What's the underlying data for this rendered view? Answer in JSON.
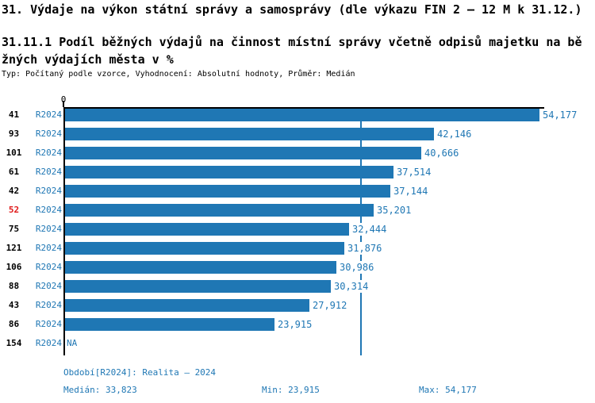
{
  "header": {
    "title": "31. Výdaje na výkon státní správy a samosprávy (dle výkazu FIN 2 – 12 M k 31.12.)",
    "subtitle_line1": "31.11.1 Podíl běžných výdajů na činnost místní správy včetně odpisů majetku na bě",
    "subtitle_line2": "žných výdajích města v %",
    "meta": "Typ: Počítaný podle vzorce, Vyhodnocení: Absolutní hodnoty, Průměr: Medián"
  },
  "chart_data": {
    "type": "bar",
    "orientation": "horizontal",
    "title": "31.11.1 Podíl běžných výdajů na činnost místní správy včetně odpisů majetku na běžných výdajích města v %",
    "series_name": "R2024",
    "x_axis": {
      "origin_label": "0"
    },
    "xlim": [
      0,
      54630
    ],
    "categories": [
      "41",
      "93",
      "101",
      "61",
      "42",
      "52",
      "75",
      "121",
      "106",
      "88",
      "43",
      "86",
      "154"
    ],
    "values": [
      54177,
      42146,
      40666,
      37514,
      37144,
      35201,
      32444,
      31876,
      30986,
      30314,
      27912,
      23915,
      null
    ],
    "highlight_category": "52",
    "median": 33823,
    "min": 23915,
    "max": 54177,
    "rows": [
      {
        "id": "41",
        "period": "R2024",
        "value": 54177,
        "label": "54,177"
      },
      {
        "id": "93",
        "period": "R2024",
        "value": 42146,
        "label": "42,146"
      },
      {
        "id": "101",
        "period": "R2024",
        "value": 40666,
        "label": "40,666"
      },
      {
        "id": "61",
        "period": "R2024",
        "value": 37514,
        "label": "37,514"
      },
      {
        "id": "42",
        "period": "R2024",
        "value": 37144,
        "label": "37,144"
      },
      {
        "id": "52",
        "period": "R2024",
        "value": 35201,
        "label": "35,201"
      },
      {
        "id": "75",
        "period": "R2024",
        "value": 32444,
        "label": "32,444"
      },
      {
        "id": "121",
        "period": "R2024",
        "value": 31876,
        "label": "31,876"
      },
      {
        "id": "106",
        "period": "R2024",
        "value": 30986,
        "label": "30,986"
      },
      {
        "id": "88",
        "period": "R2024",
        "value": 30314,
        "label": "30,314"
      },
      {
        "id": "43",
        "period": "R2024",
        "value": 27912,
        "label": "27,912"
      },
      {
        "id": "86",
        "period": "R2024",
        "value": 23915,
        "label": "23,915"
      },
      {
        "id": "154",
        "period": "R2024",
        "value": null,
        "label": "NA"
      }
    ],
    "colors": {
      "bar": "#1f77b4",
      "median_line": "#1f77b4",
      "blue_text": "#1f77b4",
      "highlight_text": "#e01a1a"
    }
  },
  "footer": {
    "period_info": "Období[R2024]: Realita – 2024",
    "median": "Medián: 33,823",
    "min": "Min: 23,915",
    "max": "Max: 54,177"
  }
}
